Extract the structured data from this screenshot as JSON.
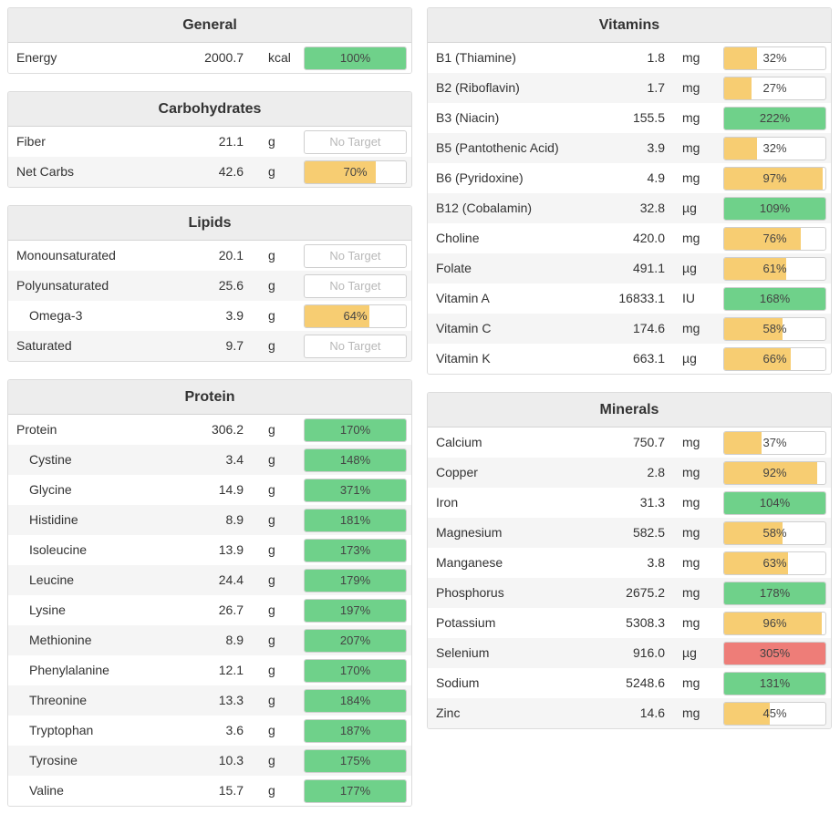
{
  "colors": {
    "green": "#6fd18a",
    "yellow": "#f7cd72",
    "red": "#ee7d78"
  },
  "no_target_label": "No Target",
  "left": [
    {
      "id": "general",
      "title": "General",
      "rows": [
        {
          "name": "Energy",
          "amount": "2000.7",
          "unit": "kcal",
          "pct": 100,
          "pct_label": "100%",
          "color": "green"
        }
      ]
    },
    {
      "id": "carbohydrates",
      "title": "Carbohydrates",
      "rows": [
        {
          "name": "Fiber",
          "amount": "21.1",
          "unit": "g",
          "pct": null,
          "pct_label": "No Target"
        },
        {
          "name": "Net Carbs",
          "amount": "42.6",
          "unit": "g",
          "pct": 70,
          "pct_label": "70%",
          "color": "yellow"
        }
      ]
    },
    {
      "id": "lipids",
      "title": "Lipids",
      "rows": [
        {
          "name": "Monounsaturated",
          "amount": "20.1",
          "unit": "g",
          "pct": null,
          "pct_label": "No Target"
        },
        {
          "name": "Polyunsaturated",
          "amount": "25.6",
          "unit": "g",
          "pct": null,
          "pct_label": "No Target"
        },
        {
          "name": "Omega-3",
          "amount": "3.9",
          "unit": "g",
          "pct": 64,
          "pct_label": "64%",
          "color": "yellow",
          "sub": true
        },
        {
          "name": "Saturated",
          "amount": "9.7",
          "unit": "g",
          "pct": null,
          "pct_label": "No Target"
        }
      ]
    },
    {
      "id": "protein",
      "title": "Protein",
      "rows": [
        {
          "name": "Protein",
          "amount": "306.2",
          "unit": "g",
          "pct": 170,
          "pct_label": "170%",
          "color": "green"
        },
        {
          "name": "Cystine",
          "amount": "3.4",
          "unit": "g",
          "pct": 148,
          "pct_label": "148%",
          "color": "green",
          "sub": true
        },
        {
          "name": "Glycine",
          "amount": "14.9",
          "unit": "g",
          "pct": 371,
          "pct_label": "371%",
          "color": "green",
          "sub": true
        },
        {
          "name": "Histidine",
          "amount": "8.9",
          "unit": "g",
          "pct": 181,
          "pct_label": "181%",
          "color": "green",
          "sub": true
        },
        {
          "name": "Isoleucine",
          "amount": "13.9",
          "unit": "g",
          "pct": 173,
          "pct_label": "173%",
          "color": "green",
          "sub": true
        },
        {
          "name": "Leucine",
          "amount": "24.4",
          "unit": "g",
          "pct": 179,
          "pct_label": "179%",
          "color": "green",
          "sub": true
        },
        {
          "name": "Lysine",
          "amount": "26.7",
          "unit": "g",
          "pct": 197,
          "pct_label": "197%",
          "color": "green",
          "sub": true
        },
        {
          "name": "Methionine",
          "amount": "8.9",
          "unit": "g",
          "pct": 207,
          "pct_label": "207%",
          "color": "green",
          "sub": true
        },
        {
          "name": "Phenylalanine",
          "amount": "12.1",
          "unit": "g",
          "pct": 170,
          "pct_label": "170%",
          "color": "green",
          "sub": true
        },
        {
          "name": "Threonine",
          "amount": "13.3",
          "unit": "g",
          "pct": 184,
          "pct_label": "184%",
          "color": "green",
          "sub": true
        },
        {
          "name": "Tryptophan",
          "amount": "3.6",
          "unit": "g",
          "pct": 187,
          "pct_label": "187%",
          "color": "green",
          "sub": true
        },
        {
          "name": "Tyrosine",
          "amount": "10.3",
          "unit": "g",
          "pct": 175,
          "pct_label": "175%",
          "color": "green",
          "sub": true
        },
        {
          "name": "Valine",
          "amount": "15.7",
          "unit": "g",
          "pct": 177,
          "pct_label": "177%",
          "color": "green",
          "sub": true
        }
      ]
    }
  ],
  "right": [
    {
      "id": "vitamins",
      "title": "Vitamins",
      "rows": [
        {
          "name": "B1 (Thiamine)",
          "amount": "1.8",
          "unit": "mg",
          "pct": 32,
          "pct_label": "32%",
          "color": "yellow"
        },
        {
          "name": "B2 (Riboflavin)",
          "amount": "1.7",
          "unit": "mg",
          "pct": 27,
          "pct_label": "27%",
          "color": "yellow"
        },
        {
          "name": "B3 (Niacin)",
          "amount": "155.5",
          "unit": "mg",
          "pct": 222,
          "pct_label": "222%",
          "color": "green"
        },
        {
          "name": "B5 (Pantothenic Acid)",
          "amount": "3.9",
          "unit": "mg",
          "pct": 32,
          "pct_label": "32%",
          "color": "yellow"
        },
        {
          "name": "B6 (Pyridoxine)",
          "amount": "4.9",
          "unit": "mg",
          "pct": 97,
          "pct_label": "97%",
          "color": "yellow"
        },
        {
          "name": "B12 (Cobalamin)",
          "amount": "32.8",
          "unit": "µg",
          "pct": 109,
          "pct_label": "109%",
          "color": "green"
        },
        {
          "name": "Choline",
          "amount": "420.0",
          "unit": "mg",
          "pct": 76,
          "pct_label": "76%",
          "color": "yellow"
        },
        {
          "name": "Folate",
          "amount": "491.1",
          "unit": "µg",
          "pct": 61,
          "pct_label": "61%",
          "color": "yellow"
        },
        {
          "name": "Vitamin A",
          "amount": "16833.1",
          "unit": "IU",
          "pct": 168,
          "pct_label": "168%",
          "color": "green"
        },
        {
          "name": "Vitamin C",
          "amount": "174.6",
          "unit": "mg",
          "pct": 58,
          "pct_label": "58%",
          "color": "yellow"
        },
        {
          "name": "Vitamin K",
          "amount": "663.1",
          "unit": "µg",
          "pct": 66,
          "pct_label": "66%",
          "color": "yellow"
        }
      ]
    },
    {
      "id": "minerals",
      "title": "Minerals",
      "rows": [
        {
          "name": "Calcium",
          "amount": "750.7",
          "unit": "mg",
          "pct": 37,
          "pct_label": "37%",
          "color": "yellow"
        },
        {
          "name": "Copper",
          "amount": "2.8",
          "unit": "mg",
          "pct": 92,
          "pct_label": "92%",
          "color": "yellow"
        },
        {
          "name": "Iron",
          "amount": "31.3",
          "unit": "mg",
          "pct": 104,
          "pct_label": "104%",
          "color": "green"
        },
        {
          "name": "Magnesium",
          "amount": "582.5",
          "unit": "mg",
          "pct": 58,
          "pct_label": "58%",
          "color": "yellow"
        },
        {
          "name": "Manganese",
          "amount": "3.8",
          "unit": "mg",
          "pct": 63,
          "pct_label": "63%",
          "color": "yellow"
        },
        {
          "name": "Phosphorus",
          "amount": "2675.2",
          "unit": "mg",
          "pct": 178,
          "pct_label": "178%",
          "color": "green"
        },
        {
          "name": "Potassium",
          "amount": "5308.3",
          "unit": "mg",
          "pct": 96,
          "pct_label": "96%",
          "color": "yellow"
        },
        {
          "name": "Selenium",
          "amount": "916.0",
          "unit": "µg",
          "pct": 305,
          "pct_label": "305%",
          "color": "red"
        },
        {
          "name": "Sodium",
          "amount": "5248.6",
          "unit": "mg",
          "pct": 131,
          "pct_label": "131%",
          "color": "green"
        },
        {
          "name": "Zinc",
          "amount": "14.6",
          "unit": "mg",
          "pct": 45,
          "pct_label": "45%",
          "color": "yellow"
        }
      ]
    }
  ]
}
